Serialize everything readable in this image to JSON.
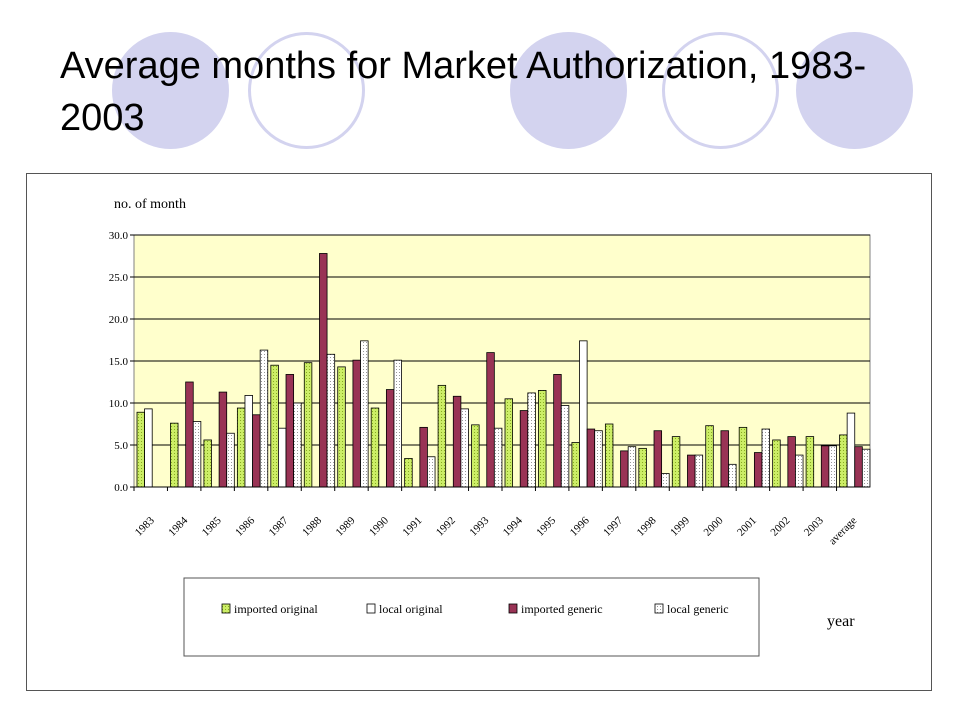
{
  "slide": {
    "title": "Average months for Market Authorization, 1983-2003"
  },
  "colors": {
    "decoration": "#d3d3ef",
    "plot_background": "#ffffcc",
    "imported_original": "#ccee66",
    "local_original": "#ffffff",
    "imported_generic": "#993355",
    "local_generic": "#ffffff"
  },
  "chart_data": {
    "type": "bar",
    "ylabel": "no. of month",
    "xlabel": "year",
    "ylim": [
      0,
      30
    ],
    "yticks": [
      "0.0",
      "5.0",
      "10.0",
      "15.0",
      "20.0",
      "25.0",
      "30.0"
    ],
    "grid": true,
    "legend_position": "bottom",
    "categories": [
      "1983",
      "1984",
      "1985",
      "1986",
      "1987",
      "1988",
      "1989",
      "1990",
      "1991",
      "1992",
      "1993",
      "1994",
      "1995",
      "1996",
      "1997",
      "1998",
      "1999",
      "2000",
      "2001",
      "2002",
      "2003",
      "average"
    ],
    "series": [
      {
        "name": "imported original",
        "values": [
          8.9,
          7.6,
          5.6,
          9.4,
          14.5,
          14.8,
          14.3,
          9.4,
          3.4,
          12.1,
          7.4,
          10.5,
          11.5,
          5.3,
          7.5,
          4.6,
          6.0,
          7.3,
          7.1,
          5.6,
          6.0,
          6.2
        ]
      },
      {
        "name": "local original",
        "values": [
          9.3,
          0,
          0,
          10.9,
          7.0,
          0,
          0,
          0,
          0,
          0,
          0,
          0,
          0,
          17.4,
          0,
          0,
          0,
          0,
          0,
          0,
          0,
          8.8
        ]
      },
      {
        "name": "imported generic",
        "values": [
          0,
          12.5,
          11.3,
          8.6,
          13.4,
          27.8,
          15.1,
          11.6,
          7.1,
          10.8,
          16.0,
          9.1,
          13.4,
          6.9,
          4.3,
          6.7,
          3.8,
          6.7,
          4.1,
          6.0,
          4.9,
          4.8
        ]
      },
      {
        "name": "local generic",
        "values": [
          0,
          7.8,
          6.4,
          16.3,
          10.0,
          15.8,
          17.4,
          15.1,
          3.6,
          9.3,
          7.0,
          11.2,
          9.7,
          6.7,
          4.8,
          1.6,
          3.8,
          2.7,
          6.9,
          3.8,
          4.9,
          4.5
        ]
      }
    ]
  }
}
